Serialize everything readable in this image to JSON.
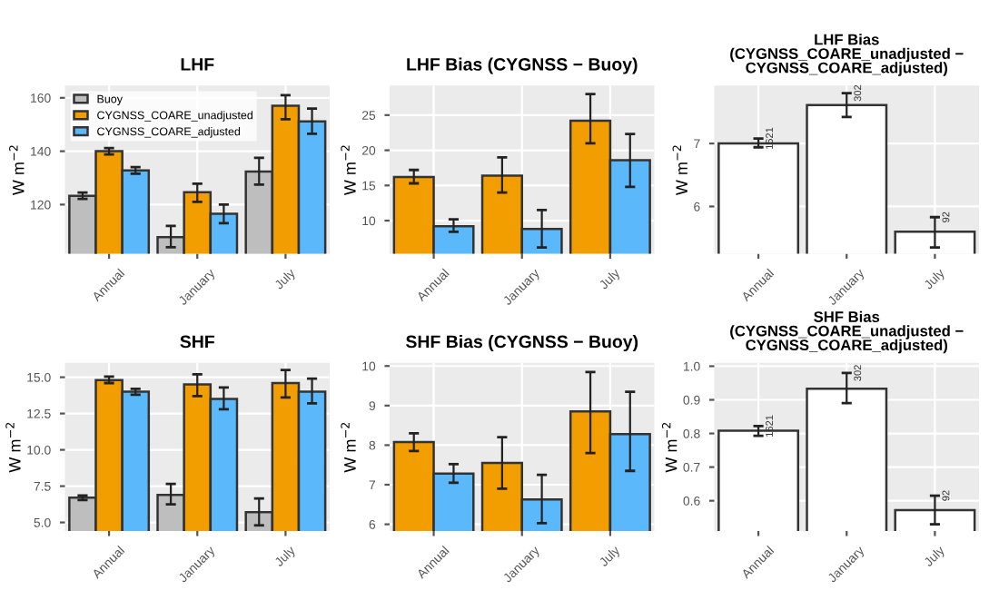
{
  "chart_data": [
    {
      "type": "bar",
      "title": "LHF",
      "ylabel": "W m$^{−2}$",
      "categories": [
        "Annual",
        "January",
        "July"
      ],
      "ylim": [
        101.6,
        164.6
      ],
      "yticks": [
        120,
        140,
        160
      ],
      "grid": true,
      "legend": "top left",
      "series": [
        {
          "name": "Buoy",
          "color": "#bebebe",
          "values": [
            123.3,
            107.8,
            132.4
          ],
          "errors": [
            [
              122.1,
              124.5
            ],
            [
              104,
              112
            ],
            [
              127.5,
              137.5
            ]
          ]
        },
        {
          "name": "CYGNSS_COARE_unadjusted",
          "color": "#f29d00",
          "values": [
            140,
            124.6,
            157
          ],
          "errors": [
            [
              138.8,
              141.2
            ],
            [
              121,
              127.8
            ],
            [
              152,
              161
            ]
          ]
        },
        {
          "name": "CYGNSS_COARE_adjusted",
          "color": "#5bb8fb",
          "values": [
            132.8,
            116.6,
            151.2
          ],
          "errors": [
            [
              131.6,
              134
            ],
            [
              113,
              120
            ],
            [
              146.5,
              156
            ]
          ]
        }
      ]
    },
    {
      "type": "bar",
      "title": "LHF Bias (CYGNSS − Buoy)",
      "ylabel": "W m$^{−2}$",
      "categories": [
        "Annual",
        "January",
        "July"
      ],
      "ylim": [
        5.3,
        29.2
      ],
      "yticks": [
        10,
        15,
        20,
        25
      ],
      "grid": true,
      "series": [
        {
          "color": "#f29d00",
          "values": [
            16.2,
            16.4,
            24.2
          ],
          "errors": [
            [
              15.3,
              17.2
            ],
            [
              14,
              19
            ],
            [
              21,
              28
            ]
          ]
        },
        {
          "color": "#5bb8fb",
          "values": [
            9.2,
            8.8,
            18.6
          ],
          "errors": [
            [
              8.4,
              10.2
            ],
            [
              6.2,
              11.5
            ],
            [
              14.8,
              22.3
            ]
          ]
        }
      ]
    },
    {
      "type": "bar",
      "title": "LHF Bias\n(CYGNSS_COARE_unadjusted −\nCYGNSS_COARE_adjusted)",
      "ylabel": "W m$^{−2}$",
      "categories": [
        "Annual",
        "January",
        "July"
      ],
      "ylim": [
        5.25,
        7.92
      ],
      "yticks": [
        6,
        7
      ],
      "grid": true,
      "series": [
        {
          "color": "#ffffff",
          "values": [
            7.0,
            7.61,
            5.6
          ],
          "errors": [
            [
              6.94,
              7.08
            ],
            [
              7.42,
              7.8
            ],
            [
              5.35,
              5.83
            ]
          ]
        }
      ],
      "annotations": [
        {
          "text": "1621",
          "x": "Annual",
          "y": 7.08
        },
        {
          "text": "302",
          "x": "January",
          "y": 7.8
        },
        {
          "text": "92",
          "x": "July",
          "y": 5.83
        }
      ]
    },
    {
      "type": "bar",
      "title": "SHF",
      "ylabel": "W m$^{−2}$",
      "categories": [
        "Annual",
        "January",
        "July"
      ],
      "ylim": [
        4.41,
        15.99
      ],
      "yticks": [
        {
          "value": 5,
          "label": "5.0"
        },
        {
          "value": 7.5,
          "label": "7.5"
        },
        {
          "value": 10,
          "label": "10.0"
        },
        {
          "value": 12.5,
          "label": "12.5"
        },
        {
          "value": 15,
          "label": "15.0"
        }
      ],
      "grid": true,
      "series": [
        {
          "color": "#bebebe",
          "values": [
            6.7,
            6.9,
            5.7
          ],
          "errors": [
            [
              6.55,
              6.85
            ],
            [
              6.25,
              7.65
            ],
            [
              4.8,
              6.65
            ]
          ]
        },
        {
          "color": "#f29d00",
          "values": [
            14.8,
            14.5,
            14.6
          ],
          "errors": [
            [
              14.6,
              15.05
            ],
            [
              13.7,
              15.2
            ],
            [
              13.6,
              15.5
            ]
          ]
        },
        {
          "color": "#5bb8fb",
          "values": [
            14.0,
            13.5,
            14.0
          ],
          "errors": [
            [
              13.8,
              14.2
            ],
            [
              12.8,
              14.3
            ],
            [
              13.2,
              14.9
            ]
          ]
        }
      ]
    },
    {
      "type": "bar",
      "title": "SHF Bias (CYGNSS − Buoy)",
      "ylabel": "W m$^{−2}$",
      "categories": [
        "Annual",
        "January",
        "July"
      ],
      "ylim": [
        5.83,
        10.08
      ],
      "yticks": [
        6,
        7,
        8,
        9,
        10
      ],
      "grid": true,
      "series": [
        {
          "color": "#f29d00",
          "values": [
            8.08,
            7.55,
            8.85
          ],
          "errors": [
            [
              7.85,
              8.3
            ],
            [
              6.9,
              8.2
            ],
            [
              7.8,
              9.85
            ]
          ]
        },
        {
          "color": "#5bb8fb",
          "values": [
            7.28,
            6.63,
            8.28
          ],
          "errors": [
            [
              7.05,
              7.52
            ],
            [
              6.03,
              7.25
            ],
            [
              7.35,
              9.35
            ]
          ]
        }
      ]
    },
    {
      "type": "bar",
      "title": "SHF Bias\n(CYGNSS_COARE_unadjusted −\nCYGNSS_COARE_adjusted)",
      "ylabel": "W m$^{−2}$",
      "categories": [
        "Annual",
        "January",
        "July"
      ],
      "ylim": [
        0.51,
        1.01
      ],
      "yticks": [
        0.6,
        0.7,
        0.8,
        0.9,
        {
          "value": 1.0,
          "label": "1.0"
        }
      ],
      "grid": true,
      "series": [
        {
          "color": "#ffffff",
          "values": [
            0.808,
            0.933,
            0.572
          ],
          "errors": [
            [
              0.793,
              0.822
            ],
            [
              0.89,
              0.98
            ],
            [
              0.53,
              0.615
            ]
          ]
        }
      ],
      "annotations": [
        {
          "text": "1621",
          "x": "Annual",
          "y": 0.822
        },
        {
          "text": "302",
          "x": "January",
          "y": 0.98
        },
        {
          "text": "92",
          "x": "July",
          "y": 0.615
        }
      ]
    }
  ]
}
